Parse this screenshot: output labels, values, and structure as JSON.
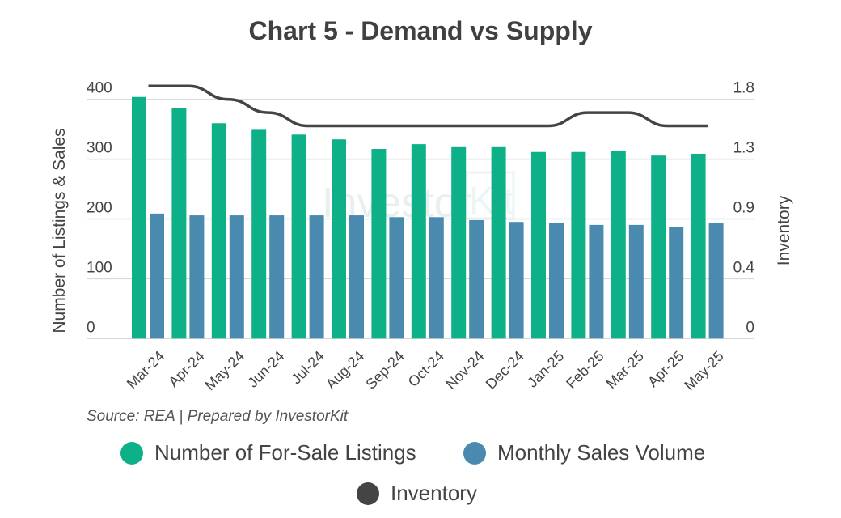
{
  "title": "Chart 5 - Demand vs Supply",
  "source": "Source: REA | Prepared by InvestorKit",
  "watermark": {
    "text": "Investor",
    "boxed": "Kit"
  },
  "colors": {
    "listings": "#0db087",
    "sales": "#4a8aae",
    "inventory": "#444444",
    "grid": "#d9d9d9"
  },
  "chart_data": {
    "type": "bar+line",
    "title": "Chart 5 - Demand vs Supply",
    "categories": [
      "Mar-24",
      "Apr-24",
      "May-24",
      "Jun-24",
      "Jul-24",
      "Aug-24",
      "Sep-24",
      "Oct-24",
      "Nov-24",
      "Dec-24",
      "Jan-25",
      "Feb-25",
      "Mar-25",
      "Apr-25",
      "May-25"
    ],
    "series": [
      {
        "name": "Number of For-Sale Listings",
        "type": "bar",
        "axis": "left",
        "values": [
          404,
          385,
          360,
          349,
          341,
          333,
          317,
          325,
          320,
          320,
          312,
          312,
          314,
          306,
          309
        ]
      },
      {
        "name": "Monthly Sales Volume",
        "type": "bar",
        "axis": "left",
        "values": [
          209,
          206,
          206,
          206,
          206,
          206,
          203,
          203,
          198,
          195,
          193,
          190,
          190,
          187,
          193
        ]
      },
      {
        "name": "Inventory",
        "type": "line",
        "axis": "right",
        "values": [
          1.9,
          1.9,
          1.8,
          1.7,
          1.6,
          1.6,
          1.6,
          1.6,
          1.6,
          1.6,
          1.6,
          1.7,
          1.7,
          1.6,
          1.6
        ]
      }
    ],
    "ylabel": "Number of Listings & Sales",
    "y2label": "Inventory",
    "ylim": [
      0,
      400
    ],
    "yticks": [
      "0",
      "100",
      "200",
      "300",
      "400"
    ],
    "y2lim": [
      0,
      1.8
    ],
    "y2ticks": [
      "0",
      "0.4",
      "0.9",
      "1.3",
      "1.8"
    ],
    "grid": true,
    "legend": "bottom"
  }
}
